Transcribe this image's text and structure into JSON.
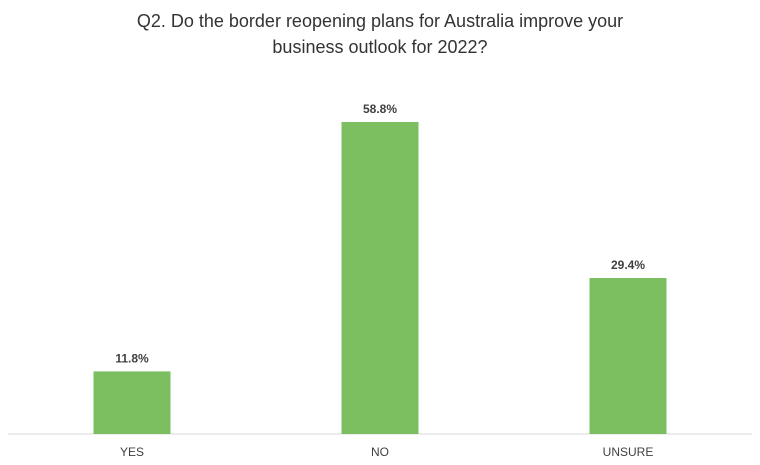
{
  "chart_data": {
    "type": "bar",
    "title_lines": [
      "Q2. Do the border reopening plans for Australia improve your",
      "business outlook for 2022?"
    ],
    "categories": [
      "YES",
      "NO",
      "UNSURE"
    ],
    "values": [
      11.8,
      58.8,
      29.4
    ],
    "data_labels": [
      "11.8%",
      "58.8%",
      "29.4%"
    ],
    "xlabel": "",
    "ylabel": "",
    "ylim": [
      0,
      60
    ],
    "grid": false,
    "legend": "none",
    "bar_color": "#7CBF60"
  }
}
